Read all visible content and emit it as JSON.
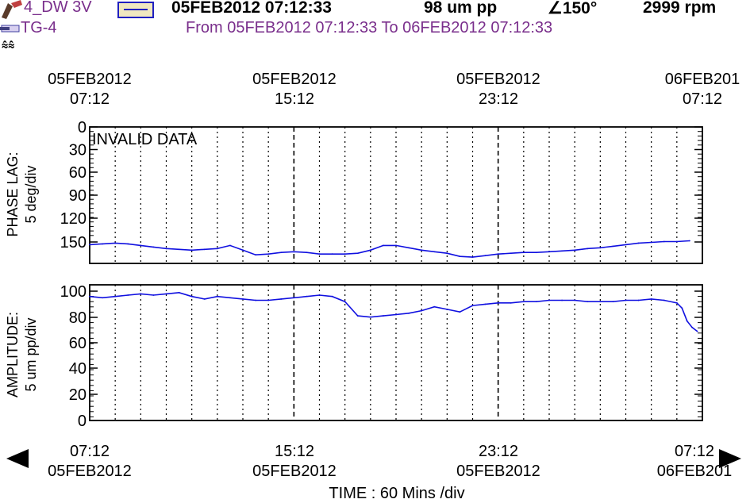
{
  "header": {
    "channel": "4_DW 3V",
    "timestamp": "05FEB2012 07:12:33",
    "amplitude": "98 um  pp",
    "phase": "∠150°",
    "speed": "2999 rpm",
    "machine": "TG-4",
    "range": "From 05FEB2012 07:12:33 To 06FEB2012 07:12:33"
  },
  "top_time_labels": [
    {
      "date": "05FEB2012",
      "time": "07:12"
    },
    {
      "date": "05FEB2012",
      "time": "15:12"
    },
    {
      "date": "05FEB2012",
      "time": "23:12"
    },
    {
      "date": "06FEB201",
      "time": "07:12"
    }
  ],
  "bottom_time_labels": [
    {
      "date": "05FEB2012",
      "time": "07:12"
    },
    {
      "date": "05FEB2012",
      "time": "15:12"
    },
    {
      "date": "05FEB2012",
      "time": "23:12"
    },
    {
      "date": "06FEB201",
      "time": "07:12"
    }
  ],
  "xlabel": "TIME : 60 Mins /div",
  "annotation": "INVALID DATA",
  "colors": {
    "trace": "#1010e0",
    "header_purple": "#7a2f8c"
  },
  "chart_data": [
    {
      "type": "line",
      "ylabel": [
        "PHASE LAG:",
        "5 deg/div"
      ],
      "y_ticks": [
        "0",
        "30",
        "60",
        "90",
        "120",
        "150"
      ],
      "ylim": [
        0,
        175
      ],
      "y_inverted": true,
      "x_unit": "hours since 05FEB2012 07:12",
      "xlim": [
        0,
        24
      ],
      "grid": "vertical dotted hourly, dashed every 8 hours",
      "series": [
        {
          "x": [
            0,
            0.5,
            1,
            1.5,
            2,
            2.5,
            3,
            3.5,
            4,
            4.5,
            5,
            5.5,
            6,
            6.5,
            7,
            7.5,
            8,
            8.5,
            9,
            9.5,
            10,
            10.5,
            11,
            11.5,
            12,
            12.5,
            13,
            13.5,
            14,
            14.5,
            15,
            15.5,
            16,
            16.5,
            17,
            17.5,
            18,
            18.5,
            19,
            19.5,
            20,
            20.5,
            21,
            21.5,
            22,
            22.5,
            23,
            23.5
          ],
          "values": [
            151,
            150,
            149,
            150,
            152,
            154,
            156,
            157,
            158,
            157,
            156,
            152,
            158,
            164,
            163,
            161,
            160,
            161,
            163,
            163,
            163,
            162,
            158,
            152,
            152,
            155,
            158,
            160,
            162,
            166,
            167,
            165,
            163,
            162,
            161,
            161,
            160,
            159,
            158,
            156,
            155,
            153,
            151,
            149,
            148,
            147,
            147,
            146
          ]
        }
      ]
    },
    {
      "type": "line",
      "ylabel": [
        "AMPLITUDE:",
        "5 um  pp/div"
      ],
      "y_ticks": [
        "100",
        "80",
        "60",
        "40",
        "20",
        "0"
      ],
      "ylim": [
        0,
        105
      ],
      "x_unit": "hours since 05FEB2012 07:12",
      "xlim": [
        0,
        24
      ],
      "grid": "vertical dotted hourly, dashed every 8 hours",
      "series": [
        {
          "x": [
            0,
            0.5,
            1,
            1.5,
            2,
            2.5,
            3,
            3.5,
            4,
            4.5,
            5,
            5.5,
            6,
            6.5,
            7,
            7.5,
            8,
            8.5,
            9,
            9.5,
            10,
            10.5,
            11,
            11.5,
            12,
            12.5,
            13,
            13.5,
            14,
            14.5,
            15,
            15.5,
            16,
            16.5,
            17,
            17.5,
            18,
            18.5,
            19,
            19.5,
            20,
            20.5,
            21,
            21.5,
            22,
            22.5,
            23,
            23.2,
            23.4,
            23.6,
            23.8
          ],
          "values": [
            96,
            95,
            96,
            97,
            98,
            97,
            98,
            99,
            96,
            94,
            96,
            95,
            94,
            93,
            93,
            94,
            95,
            96,
            97,
            96,
            92,
            81,
            80,
            81,
            82,
            83,
            85,
            88,
            86,
            84,
            89,
            90,
            91,
            91,
            92,
            92,
            93,
            93,
            93,
            92,
            92,
            92,
            93,
            93,
            94,
            93,
            91,
            87,
            77,
            72,
            69
          ]
        }
      ]
    }
  ]
}
